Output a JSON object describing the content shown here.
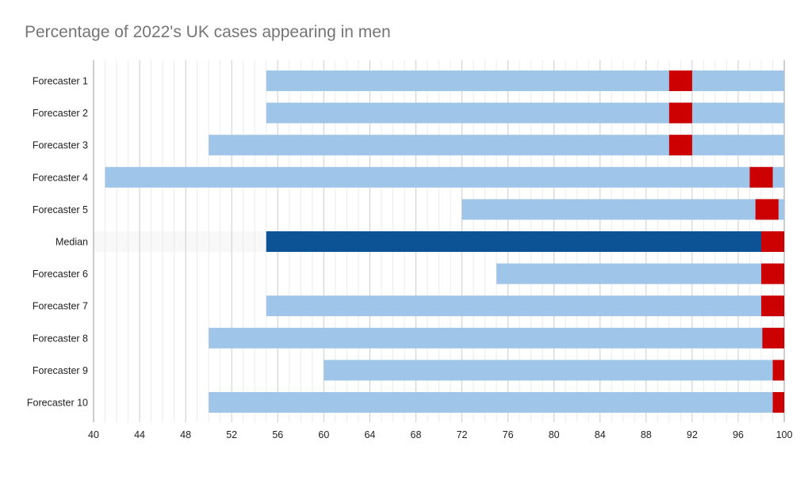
{
  "chart_data": {
    "type": "bar",
    "orientation": "horizontal",
    "title": "Percentage of 2022's UK cases appearing in men",
    "xlabel": "",
    "ylabel": "",
    "xlim": [
      40,
      100
    ],
    "x_ticks": [
      "40",
      "44",
      "48",
      "52",
      "56",
      "60",
      "64",
      "68",
      "72",
      "76",
      "80",
      "84",
      "88",
      "92",
      "96",
      "100"
    ],
    "grid": true,
    "legend": "none",
    "colors": {
      "range": "#9fc5e8",
      "median_range": "#0b5394",
      "median_background": "#f8f8f8",
      "point_estimate": "#cc0000",
      "gridline": "#d9d9d9",
      "axis": "#9e9e9e"
    },
    "categories": [
      "Forecaster 1",
      "Forecaster 2",
      "Forecaster 3",
      "Forecaster 4",
      "Forecaster 5",
      "Median",
      "Forecaster 6",
      "Forecaster 7",
      "Forecaster 8",
      "Forecaster 9",
      "Forecaster 10"
    ],
    "series": [
      {
        "role": "range",
        "low": [
          55,
          55,
          50,
          41,
          72,
          55,
          75,
          55,
          50,
          60,
          50
        ],
        "high": [
          100,
          100,
          100,
          100,
          100,
          100,
          100,
          100,
          100,
          100,
          100
        ]
      },
      {
        "role": "point_estimate",
        "low": [
          90,
          90,
          90,
          97,
          97.5,
          98,
          98,
          98,
          98.1,
          99,
          99
        ],
        "high": [
          92,
          92,
          92,
          99,
          99.5,
          100,
          100,
          100,
          100,
          100,
          100
        ]
      }
    ],
    "highlight_category": "Median"
  }
}
